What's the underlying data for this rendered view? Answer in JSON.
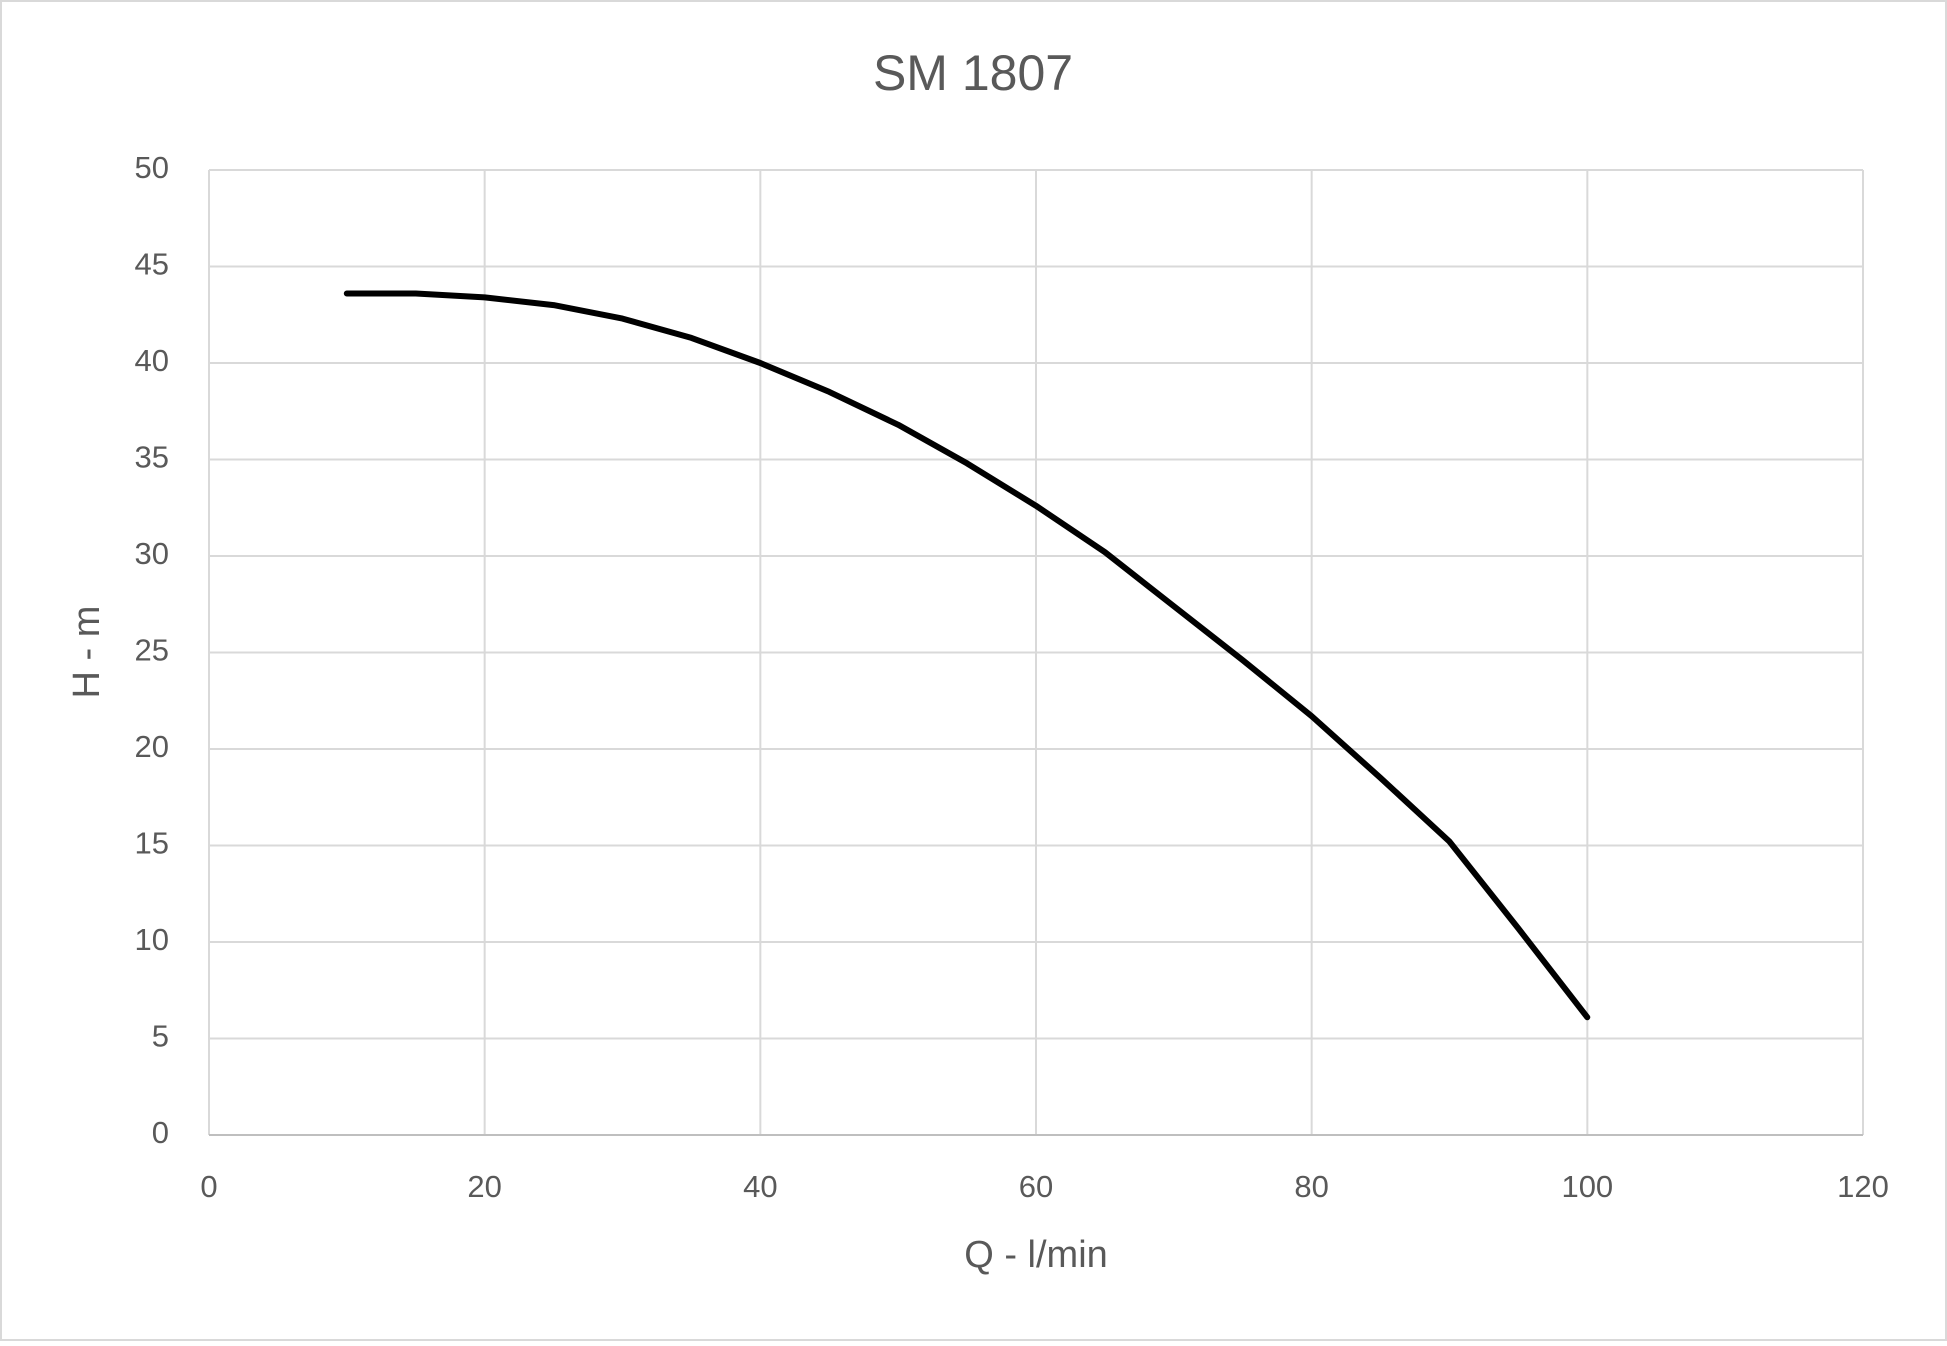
{
  "chart_data": {
    "type": "line",
    "title": "SM 1807",
    "x_label": "Q - l/min",
    "y_label": "H - m",
    "x": [
      10,
      15,
      20,
      25,
      30,
      35,
      40,
      45,
      50,
      55,
      60,
      65,
      70,
      75,
      80,
      85,
      90,
      95,
      100
    ],
    "series": [
      {
        "color": "#000000",
        "values": [
          43.6,
          43.6,
          43.4,
          43.0,
          42.3,
          41.3,
          40.0,
          38.5,
          36.8,
          34.8,
          32.6,
          30.2,
          27.4,
          24.6,
          21.7,
          18.5,
          15.2,
          10.7,
          6.1
        ]
      }
    ],
    "xlim": [
      0,
      120
    ],
    "xticks": [
      0,
      20,
      40,
      60,
      80,
      100,
      120
    ],
    "ylim": [
      0,
      50
    ],
    "yticks": [
      0,
      5,
      10,
      15,
      20,
      25,
      30,
      35,
      40,
      45,
      50
    ],
    "grid": true
  }
}
